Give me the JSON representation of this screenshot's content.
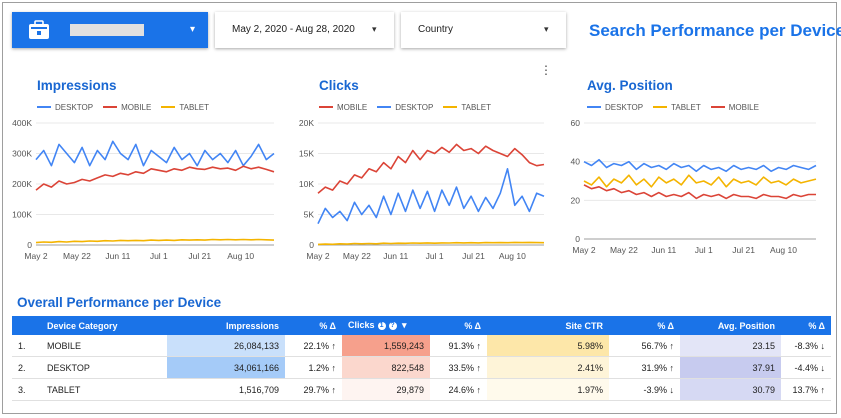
{
  "header": {
    "data_source_caret": "▾",
    "date_range": {
      "label": "May 2, 2020 - Aug 28, 2020",
      "caret": "▾"
    },
    "country": {
      "label": "Country",
      "caret": "▾"
    },
    "title": "Search Performance per Device"
  },
  "menu_glyph": "⋮",
  "colors": {
    "desktop": "#4285f4",
    "mobile": "#db4437",
    "tablet": "#f4b400",
    "accent": "#1a73e8"
  },
  "chart_data": [
    {
      "type": "line",
      "title": "Impressions",
      "x_ticks": [
        "May 2",
        "May 22",
        "Jun 11",
        "Jul 1",
        "Jul 21",
        "Aug 10"
      ],
      "ylim": [
        0,
        400000
      ],
      "y_ticks": [
        "0",
        "100K",
        "200K",
        "300K",
        "400K"
      ],
      "grid": true,
      "legend": "top",
      "series": [
        {
          "name": "DESKTOP",
          "color": "#4285f4",
          "values": [
            280000,
            310000,
            260000,
            330000,
            300000,
            270000,
            320000,
            260000,
            310000,
            280000,
            340000,
            300000,
            280000,
            330000,
            260000,
            310000,
            290000,
            270000,
            320000,
            280000,
            300000,
            260000,
            310000,
            280000,
            300000,
            270000,
            310000,
            260000,
            290000,
            330000,
            280000,
            300000
          ]
        },
        {
          "name": "MOBILE",
          "color": "#db4437",
          "values": [
            180000,
            200000,
            190000,
            210000,
            200000,
            205000,
            215000,
            210000,
            220000,
            230000,
            225000,
            235000,
            230000,
            240000,
            235000,
            250000,
            245000,
            240000,
            250000,
            245000,
            255000,
            250000,
            248000,
            255000,
            250000,
            252000,
            245000,
            258000,
            250000,
            255000,
            248000,
            240000
          ]
        },
        {
          "name": "TABLET",
          "color": "#f4b400",
          "values": [
            8000,
            10000,
            9000,
            11000,
            10000,
            12000,
            11000,
            13000,
            12000,
            14000,
            13000,
            15000,
            14000,
            15000,
            14000,
            16000,
            15000,
            16000,
            15000,
            17000,
            16000,
            17000,
            16000,
            18000,
            17000,
            18000,
            17000,
            18000,
            17000,
            18000,
            17000,
            16000
          ]
        }
      ]
    },
    {
      "type": "line",
      "title": "Clicks",
      "x_ticks": [
        "May 2",
        "May 22",
        "Jun 11",
        "Jul 1",
        "Jul 21",
        "Aug 10"
      ],
      "ylim": [
        0,
        20000
      ],
      "y_ticks": [
        "0",
        "5K",
        "10K",
        "15K",
        "20K"
      ],
      "grid": true,
      "legend": "top",
      "series": [
        {
          "name": "MOBILE",
          "color": "#db4437",
          "values": [
            8500,
            9500,
            9000,
            10500,
            10000,
            11500,
            11000,
            12500,
            12000,
            13500,
            12500,
            14500,
            13500,
            15500,
            14000,
            15500,
            15000,
            16000,
            15200,
            16500,
            15500,
            15800,
            15000,
            16200,
            15500,
            15000,
            14500,
            15800,
            14800,
            13500,
            13000,
            13200
          ]
        },
        {
          "name": "DESKTOP",
          "color": "#4285f4",
          "values": [
            3500,
            6000,
            4500,
            5500,
            4000,
            7000,
            5000,
            6500,
            4500,
            8000,
            5000,
            8500,
            5500,
            9000,
            6000,
            8800,
            5500,
            9000,
            6500,
            9500,
            6000,
            8000,
            5500,
            7800,
            6000,
            8500,
            12500,
            6500,
            8000,
            5500,
            8500,
            8000
          ]
        },
        {
          "name": "TABLET",
          "color": "#f4b400",
          "values": [
            100,
            150,
            120,
            200,
            150,
            250,
            200,
            250,
            200,
            300,
            250,
            300,
            280,
            320,
            300,
            350,
            300,
            350,
            320,
            380,
            350,
            380,
            350,
            400,
            380,
            400,
            380,
            420,
            400,
            420,
            400,
            380
          ]
        }
      ]
    },
    {
      "type": "line",
      "title": "Avg. Position",
      "x_ticks": [
        "May 2",
        "May 22",
        "Jun 11",
        "Jul 1",
        "Jul 21",
        "Aug 10"
      ],
      "ylim": [
        0,
        60
      ],
      "y_ticks": [
        "0",
        "20",
        "40",
        "60"
      ],
      "grid": true,
      "legend": "top",
      "series": [
        {
          "name": "DESKTOP",
          "color": "#4285f4",
          "values": [
            40,
            38,
            41,
            37,
            39,
            38,
            40,
            36,
            39,
            37,
            38,
            36,
            39,
            37,
            38,
            35,
            38,
            36,
            37,
            35,
            38,
            36,
            37,
            36,
            38,
            35,
            37,
            36,
            38,
            37,
            36,
            38
          ]
        },
        {
          "name": "TABLET",
          "color": "#f4b400",
          "values": [
            30,
            28,
            32,
            27,
            31,
            29,
            33,
            28,
            31,
            27,
            32,
            29,
            31,
            28,
            33,
            29,
            30,
            28,
            32,
            27,
            31,
            29,
            30,
            28,
            32,
            29,
            30,
            28,
            31,
            29,
            30,
            31
          ]
        },
        {
          "name": "MOBILE",
          "color": "#db4437",
          "values": [
            28,
            26,
            27,
            25,
            26,
            24,
            25,
            23,
            24,
            22,
            24,
            22,
            23,
            22,
            24,
            21,
            23,
            22,
            23,
            21,
            23,
            22,
            22,
            21,
            23,
            22,
            22,
            21,
            23,
            22,
            23,
            23
          ]
        }
      ]
    }
  ],
  "table": {
    "title": "Overall Performance per Device",
    "columns": [
      "",
      "Device Category",
      "Impressions",
      "% Δ",
      "Clicks",
      "% Δ",
      "Site CTR",
      "% Δ",
      "Avg. Position",
      "% Δ"
    ],
    "clicks_info_icons": [
      "1",
      "?"
    ],
    "sort_glyph": "▾",
    "rows": [
      {
        "idx": "1.",
        "device": "MOBILE",
        "impressions": "26,084,133",
        "imp_delta": "22.1% ↑",
        "clicks": "1,559,243",
        "clk_delta": "91.3% ↑",
        "ctr": "5.98%",
        "ctr_delta": "56.7% ↑",
        "pos": "23.15",
        "pos_delta": "-8.3% ↓"
      },
      {
        "idx": "2.",
        "device": "DESKTOP",
        "impressions": "34,061,166",
        "imp_delta": "1.2% ↑",
        "clicks": "822,548",
        "clk_delta": "33.5% ↑",
        "ctr": "2.41%",
        "ctr_delta": "31.9% ↑",
        "pos": "37.91",
        "pos_delta": "-4.4% ↓"
      },
      {
        "idx": "3.",
        "device": "TABLET",
        "impressions": "1,516,709",
        "imp_delta": "29.7% ↑",
        "clicks": "29,879",
        "clk_delta": "24.6% ↑",
        "ctr": "1.97%",
        "ctr_delta": "-3.9% ↓",
        "pos": "30.79",
        "pos_delta": "13.7% ↑"
      }
    ]
  }
}
